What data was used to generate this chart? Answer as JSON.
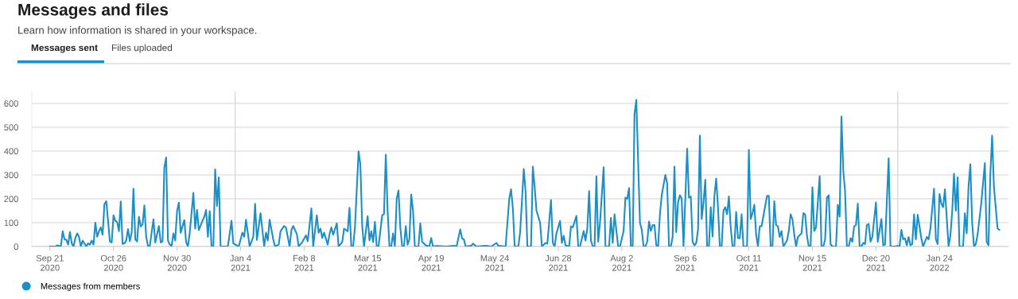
{
  "chart_data": {
    "type": "line",
    "title": "Messages and files",
    "subtitle": "Learn how information is shared in your workspace.",
    "annotations": [
      "Messages sent",
      "Files uploaded"
    ],
    "x": [
      "2020-09-21",
      "2020-09-24",
      "2020-09-25",
      "2020-09-27",
      "2020-09-28",
      "2020-09-29",
      "2020-09-30",
      "2020-10-01",
      "2020-10-02",
      "2020-10-03",
      "2020-10-04",
      "2020-10-05",
      "2020-10-06",
      "2020-10-07",
      "2020-10-08",
      "2020-10-09",
      "2020-10-11",
      "2020-10-12",
      "2020-10-13",
      "2020-10-14",
      "2020-10-15",
      "2020-10-16",
      "2020-10-17",
      "2020-10-18",
      "2020-10-19",
      "2020-10-20",
      "2020-10-21",
      "2020-10-22",
      "2020-10-23",
      "2020-10-24",
      "2020-10-25",
      "2020-10-26",
      "2020-10-27",
      "2020-10-28",
      "2020-10-29",
      "2020-10-30",
      "2020-10-31",
      "2020-11-01",
      "2020-11-02",
      "2020-11-03",
      "2020-11-04",
      "2020-11-05",
      "2020-11-06",
      "2020-11-07",
      "2020-11-08",
      "2020-11-09",
      "2020-11-10",
      "2020-11-11",
      "2020-11-12",
      "2020-11-13",
      "2020-11-14",
      "2020-11-15",
      "2020-11-17",
      "2020-11-18",
      "2020-11-20",
      "2020-11-21",
      "2020-11-22",
      "2020-11-23",
      "2020-11-24",
      "2020-11-25",
      "2020-11-26",
      "2020-11-27",
      "2020-11-28",
      "2020-11-29",
      "2020-11-30",
      "2020-12-01",
      "2020-12-02",
      "2020-12-04",
      "2020-12-05",
      "2020-12-06",
      "2020-12-07",
      "2020-12-09",
      "2020-12-10",
      "2020-12-11",
      "2020-12-12",
      "2020-12-14",
      "2020-12-15",
      "2020-12-16",
      "2020-12-17",
      "2020-12-18",
      "2020-12-19",
      "2020-12-20",
      "2020-12-21",
      "2020-12-22",
      "2020-12-23",
      "2020-12-24",
      "2020-12-28",
      "2020-12-30",
      "2020-12-31",
      "2021-01-03",
      "2021-01-05",
      "2021-01-06",
      "2021-01-07",
      "2021-01-09",
      "2021-01-11",
      "2021-01-12",
      "2021-01-13",
      "2021-01-15",
      "2021-01-17",
      "2021-01-18",
      "2021-01-19",
      "2021-01-20",
      "2021-01-22",
      "2021-01-23",
      "2021-01-25",
      "2021-01-26",
      "2021-01-28",
      "2021-01-29",
      "2021-01-31",
      "2021-02-01",
      "2021-02-02",
      "2021-02-04",
      "2021-02-05",
      "2021-02-07",
      "2021-02-09",
      "2021-02-10",
      "2021-02-12",
      "2021-02-13",
      "2021-02-15",
      "2021-02-16",
      "2021-02-17",
      "2021-02-18",
      "2021-02-19",
      "2021-02-21",
      "2021-02-22",
      "2021-02-23",
      "2021-02-24",
      "2021-02-26",
      "2021-02-27",
      "2021-03-01",
      "2021-03-02",
      "2021-03-04",
      "2021-03-05",
      "2021-03-06",
      "2021-03-07",
      "2021-03-08",
      "2021-03-10",
      "2021-03-11",
      "2021-03-12",
      "2021-03-13",
      "2021-03-15",
      "2021-03-16",
      "2021-03-17",
      "2021-03-18",
      "2021-03-19",
      "2021-03-20",
      "2021-03-21",
      "2021-03-23",
      "2021-03-24",
      "2021-03-25",
      "2021-03-26",
      "2021-03-27",
      "2021-03-28",
      "2021-03-29",
      "2021-03-30",
      "2021-03-31",
      "2021-04-01",
      "2021-04-02",
      "2021-04-03",
      "2021-04-04",
      "2021-04-05",
      "2021-04-06",
      "2021-04-07",
      "2021-04-08",
      "2021-04-09",
      "2021-04-10",
      "2021-04-12",
      "2021-04-13",
      "2021-04-14",
      "2021-04-16",
      "2021-04-18",
      "2021-04-19",
      "2021-04-20",
      "2021-04-22",
      "2021-04-27",
      "2021-05-02",
      "2021-05-03",
      "2021-05-05",
      "2021-05-06",
      "2021-05-07",
      "2021-05-08",
      "2021-05-11",
      "2021-05-12",
      "2021-05-14",
      "2021-05-19",
      "2021-05-22",
      "2021-05-25",
      "2021-05-26",
      "2021-05-30",
      "2021-06-01",
      "2021-06-02",
      "2021-06-03",
      "2021-06-04",
      "2021-06-06",
      "2021-06-07",
      "2021-06-09",
      "2021-06-10",
      "2021-06-11",
      "2021-06-13",
      "2021-06-14",
      "2021-06-15",
      "2021-06-16",
      "2021-06-18",
      "2021-06-19",
      "2021-06-21",
      "2021-06-22",
      "2021-06-24",
      "2021-06-25",
      "2021-06-26",
      "2021-06-27",
      "2021-06-29",
      "2021-06-30",
      "2021-07-01",
      "2021-07-02",
      "2021-07-04",
      "2021-07-05",
      "2021-07-06",
      "2021-07-08",
      "2021-07-09",
      "2021-07-10",
      "2021-07-12",
      "2021-07-13",
      "2021-07-14",
      "2021-07-15",
      "2021-07-16",
      "2021-07-17",
      "2021-07-18",
      "2021-07-19",
      "2021-07-20",
      "2021-07-21",
      "2021-07-23",
      "2021-07-24",
      "2021-07-26",
      "2021-07-27",
      "2021-07-28",
      "2021-07-29",
      "2021-07-31",
      "2021-08-01",
      "2021-08-03",
      "2021-08-04",
      "2021-08-05",
      "2021-08-06",
      "2021-08-07",
      "2021-08-08",
      "2021-08-09",
      "2021-08-10",
      "2021-08-12",
      "2021-08-13",
      "2021-08-14",
      "2021-08-15",
      "2021-08-16",
      "2021-08-17",
      "2021-08-18",
      "2021-08-19",
      "2021-08-20",
      "2021-08-21",
      "2021-08-22",
      "2021-08-23",
      "2021-08-24",
      "2021-08-26",
      "2021-08-27",
      "2021-08-28",
      "2021-08-29",
      "2021-08-30",
      "2021-08-31",
      "2021-09-01",
      "2021-09-02",
      "2021-09-03",
      "2021-09-04",
      "2021-09-05",
      "2021-09-07",
      "2021-09-08",
      "2021-09-09",
      "2021-09-10",
      "2021-09-11",
      "2021-09-12",
      "2021-09-13",
      "2021-09-14",
      "2021-09-15",
      "2021-09-16",
      "2021-09-17",
      "2021-09-18",
      "2021-09-19",
      "2021-09-20",
      "2021-09-21",
      "2021-09-22",
      "2021-09-23",
      "2021-09-24",
      "2021-09-25",
      "2021-09-26",
      "2021-09-27",
      "2021-09-28",
      "2021-09-29",
      "2021-09-30",
      "2021-10-01",
      "2021-10-02",
      "2021-10-03",
      "2021-10-04",
      "2021-10-05",
      "2021-10-06",
      "2021-10-07",
      "2021-10-08",
      "2021-10-10",
      "2021-10-11",
      "2021-10-12",
      "2021-10-13",
      "2021-10-14",
      "2021-10-15",
      "2021-10-16",
      "2021-10-17",
      "2021-10-18",
      "2021-10-20",
      "2021-10-21",
      "2021-10-22",
      "2021-10-23",
      "2021-10-24",
      "2021-10-25",
      "2021-10-26",
      "2021-10-27",
      "2021-10-28",
      "2021-10-29",
      "2021-10-30",
      "2021-11-01",
      "2021-11-02",
      "2021-11-03",
      "2021-11-04",
      "2021-11-05",
      "2021-11-06",
      "2021-11-07",
      "2021-11-09",
      "2021-11-10",
      "2021-11-11",
      "2021-11-12",
      "2021-11-13",
      "2021-11-14",
      "2021-11-15",
      "2021-11-16",
      "2021-11-17",
      "2021-11-19",
      "2021-11-20",
      "2021-11-21",
      "2021-11-22",
      "2021-11-23",
      "2021-11-24",
      "2021-11-25",
      "2021-11-26",
      "2021-11-28",
      "2021-11-29",
      "2021-11-30",
      "2021-12-01",
      "2021-12-02",
      "2021-12-03",
      "2021-12-04",
      "2021-12-05",
      "2021-12-06",
      "2021-12-07",
      "2021-12-08",
      "2021-12-09",
      "2021-12-10",
      "2021-12-11",
      "2021-12-12",
      "2021-12-13",
      "2021-12-14",
      "2021-12-15",
      "2021-12-16",
      "2021-12-17",
      "2021-12-18",
      "2021-12-20",
      "2021-12-21",
      "2021-12-23",
      "2021-12-24",
      "2021-12-25",
      "2021-12-27",
      "2021-12-28",
      "2021-12-30",
      "2022-01-01",
      "2022-01-02",
      "2022-01-03",
      "2022-01-04",
      "2022-01-05",
      "2022-01-06",
      "2022-01-07",
      "2022-01-08",
      "2022-01-09",
      "2022-01-10",
      "2022-01-11",
      "2022-01-12",
      "2022-01-14",
      "2022-01-15",
      "2022-01-17",
      "2022-01-18",
      "2022-01-19",
      "2022-01-21",
      "2022-01-22",
      "2022-01-23",
      "2022-01-24",
      "2022-01-25",
      "2022-01-26",
      "2022-01-27",
      "2022-01-29",
      "2022-01-30",
      "2022-01-31",
      "2022-02-01",
      "2022-02-02",
      "2022-02-03",
      "2022-02-04",
      "2022-02-06",
      "2022-02-07",
      "2022-02-08",
      "2022-02-09",
      "2022-02-10",
      "2022-02-11",
      "2022-02-12",
      "2022-02-13",
      "2022-02-14",
      "2022-02-16",
      "2022-02-18",
      "2022-02-19",
      "2022-02-20",
      "2022-02-21",
      "2022-02-22",
      "2022-02-23",
      "2022-02-25",
      "2022-02-26"
    ],
    "series": [
      {
        "name": "Messages from members",
        "color": "#1b8fc8",
        "values": [
          0,
          0,
          5,
          0,
          64,
          30,
          28,
          8,
          61,
          13,
          0,
          36,
          55,
          41,
          0,
          25,
          0,
          13,
          8,
          25,
          8,
          100,
          41,
          64,
          80,
          49,
          178,
          190,
          108,
          21,
          17,
          131,
          108,
          103,
          64,
          189,
          11,
          13,
          25,
          73,
          22,
          58,
          242,
          30,
          21,
          125,
          84,
          92,
          172,
          41,
          2,
          2,
          114,
          17,
          86,
          17,
          21,
          332,
          373,
          25,
          8,
          2,
          55,
          25,
          148,
          184,
          58,
          111,
          19,
          0,
          58,
          225,
          75,
          153,
          69,
          108,
          125,
          153,
          41,
          148,
          0,
          0,
          323,
          170,
          290,
          0,
          0,
          108,
          13,
          0,
          58,
          41,
          112,
          0,
          41,
          179,
          28,
          140,
          0,
          58,
          25,
          112,
          30,
          0,
          8,
          64,
          86,
          80,
          0,
          69,
          86,
          52,
          0,
          19,
          47,
          22,
          160,
          0,
          131,
          58,
          75,
          36,
          58,
          8,
          52,
          80,
          49,
          97,
          0,
          19,
          75,
          64,
          162,
          0,
          0,
          80,
          399,
          343,
          86,
          0,
          127,
          25,
          64,
          19,
          103,
          0,
          0,
          131,
          136,
          385,
          150,
          0,
          0,
          55,
          0,
          200,
          235,
          80,
          0,
          0,
          86,
          8,
          30,
          218,
          150,
          0,
          0,
          97,
          20,
          5,
          0,
          36,
          0,
          2,
          0,
          3,
          0,
          72,
          34,
          30,
          0,
          3,
          12,
          0,
          3,
          0,
          15,
          3,
          0,
          200,
          240,
          160,
          0,
          0,
          60,
          325,
          230,
          0,
          0,
          335,
          250,
          150,
          100,
          0,
          15,
          12,
          195,
          15,
          0,
          55,
          107,
          15,
          45,
          5,
          0,
          85,
          80,
          128,
          0,
          0,
          65,
          25,
          75,
          232,
          25,
          0,
          0,
          294,
          20,
          100,
          332,
          0,
          0,
          120,
          15,
          135,
          0,
          0,
          65,
          205,
          200,
          245,
          0,
          0,
          555,
          615,
          100,
          70,
          0,
          0,
          20,
          105,
          65,
          90,
          90,
          5,
          0,
          135,
          215,
          300,
          265,
          0,
          0,
          40,
          335,
          60,
          185,
          215,
          200,
          0,
          410,
          205,
          210,
          20,
          5,
          15,
          70,
          465,
          115,
          185,
          280,
          0,
          0,
          165,
          42,
          210,
          285,
          165,
          0,
          0,
          150,
          165,
          135,
          210,
          80,
          0,
          0,
          145,
          35,
          35,
          135,
          0,
          0,
          405,
          115,
          140,
          175,
          50,
          0,
          85,
          85,
          170,
          212,
          212,
          0,
          0,
          190,
          90,
          85,
          40,
          65,
          0,
          25,
          65,
          135,
          115,
          50,
          0,
          40,
          55,
          140,
          135,
          45,
          0,
          0,
          248,
          65,
          80,
          295,
          0,
          0,
          30,
          205,
          215,
          10,
          0,
          0,
          175,
          125,
          545,
          320,
          230,
          0,
          0,
          35,
          20,
          85,
          90,
          180,
          0,
          0,
          15,
          10,
          90,
          95,
          20,
          40,
          185,
          20,
          115,
          5,
          8,
          370,
          0,
          0,
          2,
          0,
          70,
          30,
          35,
          5,
          40,
          5,
          10,
          135,
          30,
          133,
          35,
          0,
          40,
          30,
          75,
          242,
          30,
          10,
          220,
          180,
          165,
          240,
          0,
          45,
          145,
          305,
          150,
          290,
          0,
          0,
          140,
          55,
          250,
          345,
          100,
          0,
          10,
          50,
          180,
          350,
          20,
          5,
          300,
          465,
          250,
          75,
          70
        ]
      }
    ],
    "xlim": [
      "2020-09-11",
      "2022-03-03"
    ],
    "xticks": [
      {
        "value": "2020-09-21",
        "label": "Sep 21\n2020"
      },
      {
        "value": "2020-10-26",
        "label": "Oct 26\n2020"
      },
      {
        "value": "2020-11-30",
        "label": "Nov 30\n2020"
      },
      {
        "value": "2021-01-04",
        "label": "Jan 4\n2021"
      },
      {
        "value": "2021-02-08",
        "label": "Feb 8\n2021"
      },
      {
        "value": "2021-03-15",
        "label": "Mar 15\n2021"
      },
      {
        "value": "2021-04-19",
        "label": "Apr 19\n2021"
      },
      {
        "value": "2021-05-24",
        "label": "May 24\n2021"
      },
      {
        "value": "2021-06-28",
        "label": "Jun 28\n2021"
      },
      {
        "value": "2021-08-02",
        "label": "Aug 2\n2021"
      },
      {
        "value": "2021-09-06",
        "label": "Sep 6\n2021"
      },
      {
        "value": "2021-10-11",
        "label": "Oct 11\n2021"
      },
      {
        "value": "2021-11-15",
        "label": "Nov 15\n2021"
      },
      {
        "value": "2021-12-20",
        "label": "Dec 20\n2021"
      },
      {
        "value": "2022-01-24",
        "label": "Jan 24\n2022"
      }
    ],
    "ylim": [
      0,
      650
    ],
    "yticks": [
      0,
      100,
      200,
      300,
      400,
      500,
      600
    ],
    "ref_lines": [
      {
        "axis": "x",
        "value": "2021-01-01",
        "color": "#d9d9d9"
      },
      {
        "axis": "x",
        "value": "2022-01-01",
        "color": "#d9d9d9"
      }
    ],
    "grid": "y",
    "legend": "bottom left",
    "marker": "none",
    "line_style": "solid"
  }
}
